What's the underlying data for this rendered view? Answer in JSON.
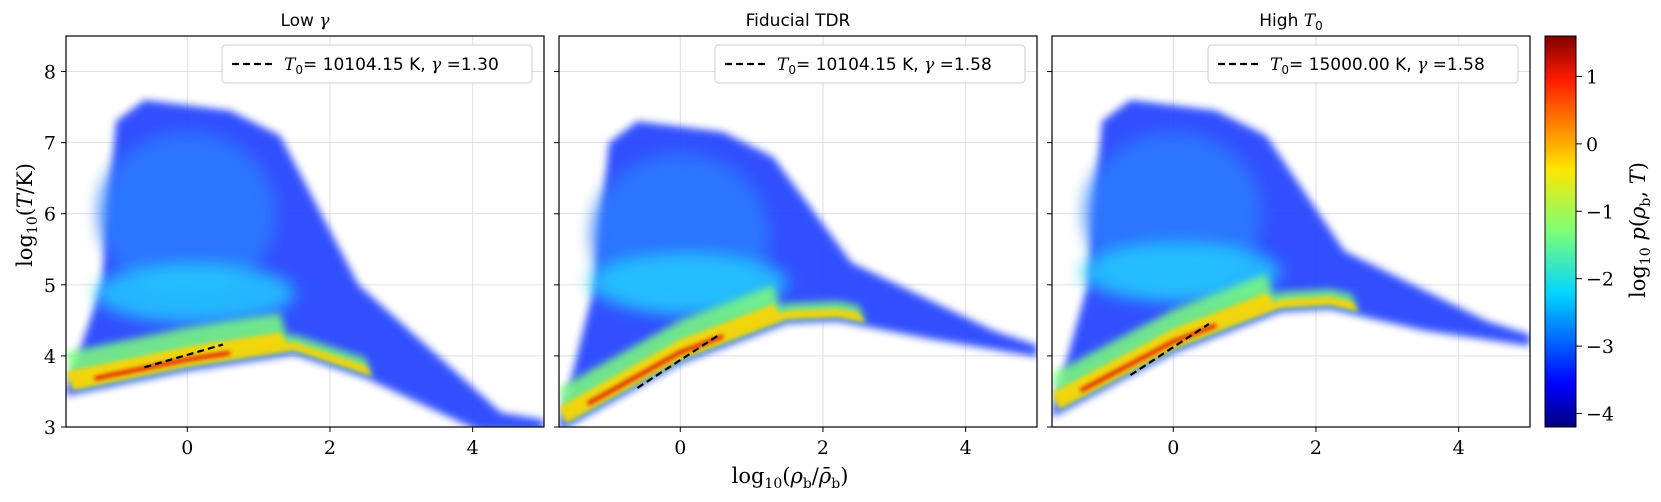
{
  "chart_data": [
    {
      "type": "heatmap",
      "title": "Low γ",
      "xlim": [
        -1.7,
        5.0
      ],
      "ylim": [
        3.0,
        8.5
      ],
      "xticks": [
        0,
        2,
        4
      ],
      "yticks": [
        3,
        4,
        5,
        6,
        7,
        8
      ],
      "grid": true,
      "legend": {
        "placement": "top-right",
        "entries": [
          {
            "label": "T0= 10104.15 K, γ =1.30",
            "style": "dashed"
          }
        ]
      },
      "T0": 10104.15,
      "gamma": 1.3,
      "fit_line": {
        "x": [
          -0.6,
          0.5
        ],
        "y": [
          3.84,
          4.16
        ]
      },
      "floor": {
        "x": [
          -1.7,
          0,
          1.5,
          2.5,
          4.1
        ],
        "y": [
          3.5,
          3.85,
          4.08,
          3.75,
          3.0
        ]
      },
      "hot_top": 7.6,
      "hot_right": 3.0
    },
    {
      "type": "heatmap",
      "title": "Fiducial TDR",
      "xlim": [
        -1.7,
        5.0
      ],
      "ylim": [
        3.0,
        8.5
      ],
      "xticks": [
        0,
        2,
        4
      ],
      "yticks": [
        3,
        4,
        5,
        6,
        7,
        8
      ],
      "grid": true,
      "legend": {
        "placement": "top-right",
        "entries": [
          {
            "label": "T0= 10104.15 K, γ =1.58",
            "style": "dashed"
          }
        ]
      },
      "T0": 10104.15,
      "gamma": 1.58,
      "fit_line": {
        "x": [
          -0.6,
          0.55
        ],
        "y": [
          3.55,
          4.3
        ]
      },
      "floor": {
        "x": [
          -1.7,
          0,
          1.5,
          2.2,
          3.5,
          5.0
        ],
        "y": [
          3.0,
          3.95,
          4.52,
          4.55,
          4.3,
          4.05
        ]
      },
      "hot_top": 7.3,
      "hot_right": 4.0
    },
    {
      "type": "heatmap",
      "title": "High T0",
      "xlim": [
        -1.7,
        5.0
      ],
      "ylim": [
        3.0,
        8.5
      ],
      "xticks": [
        0,
        2,
        4
      ],
      "yticks": [
        3,
        4,
        5,
        6,
        7,
        8
      ],
      "grid": true,
      "legend": {
        "placement": "top-right",
        "entries": [
          {
            "label": "T0= 15000.00 K, γ =1.58",
            "style": "dashed"
          }
        ]
      },
      "T0": 15000.0,
      "gamma": 1.58,
      "fit_line": {
        "x": [
          -0.6,
          0.5
        ],
        "y": [
          3.73,
          4.45
        ]
      },
      "floor": {
        "x": [
          -1.7,
          0,
          1.5,
          2.2,
          3.5,
          5.0
        ],
        "y": [
          3.2,
          4.1,
          4.68,
          4.72,
          4.42,
          4.2
        ]
      },
      "hot_top": 7.6,
      "hot_right": 4.2
    }
  ],
  "shared": {
    "xlabel": "log10(ρb/ρ̄b)",
    "ylabel": "log10(T/K)",
    "colorbar": {
      "label": "log10 p(ρb, T)",
      "range": [
        -4.2,
        1.6
      ],
      "ticks": [
        1,
        0,
        -1,
        -2,
        -3,
        -4
      ],
      "colormap": "jet"
    }
  }
}
